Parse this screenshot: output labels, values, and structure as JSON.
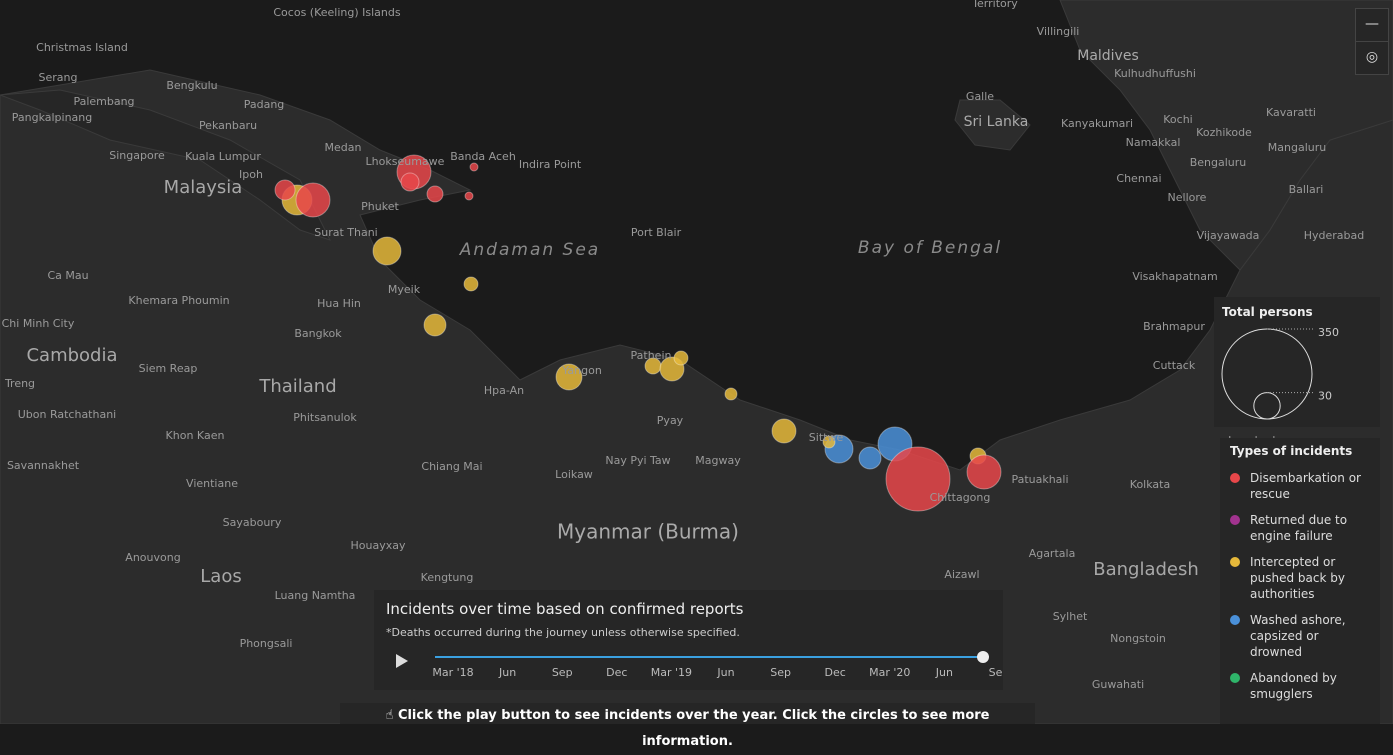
{
  "map": {
    "places": [
      "Cocos (Keeling) Islands",
      "Territory",
      "Villingili",
      "Maldives",
      "Kulhudhuffushi",
      "Christmas Island",
      "Serang",
      "Bengkulu",
      "Palembang",
      "Padang",
      "Pangkalpinang",
      "Pekanbaru",
      "Singapore",
      "Kuala Lumpur",
      "Medan",
      "Lhokseumawe",
      "Banda Aceh",
      "Indira Point",
      "Ipoh",
      "Malaysia",
      "Phuket",
      "Surat Thani",
      "Port Blair",
      "Galle",
      "Sri Lanka",
      "Kanyakumari",
      "Kochi",
      "Kozhikode",
      "Kavaratti",
      "Namakkal",
      "Mangaluru",
      "Bengaluru",
      "Chennai",
      "Ballari",
      "Nellore",
      "Vijayawada",
      "Hyderabad",
      "Visakhapatnam",
      "Brahmapur",
      "Cuttack",
      "Jamshedpur",
      "Kolkata",
      "Patuakhali",
      "Ca Mau",
      "Khemara Phoumin",
      "Hua Hin",
      "Myeik",
      "Chi Minh City",
      "Bangkok",
      "Cambodia",
      "Siem Reap",
      "Thailand",
      "Treng",
      "Ubon Ratchathani",
      "Phitsanulok",
      "Hpa-An",
      "Yangon",
      "Pathein",
      "Pyay",
      "Sittwe",
      "Nay Pyi Taw",
      "Magway",
      "Loikaw",
      "Khon Kaen",
      "Savannakhet",
      "Chiang Mai",
      "Vientiane",
      "Myanmar (Burma)",
      "Chittagong",
      "Anouvong",
      "Sayaboury",
      "Houayxay",
      "Laos",
      "Kengtung",
      "Luang Namtha",
      "Phongsali",
      "Aizawl",
      "Agartala",
      "Bangladesh",
      "Sylhet",
      "Nongstoin",
      "Guwahati"
    ],
    "seas": [
      "Andaman Sea",
      "Bay of Bengal"
    ]
  },
  "size_legend": {
    "title": "Total persons",
    "sizes": [
      350,
      30
    ]
  },
  "types": {
    "title": "Types of incidents",
    "items": [
      {
        "name": "Disembarkation or rescue",
        "color": "#e8474a"
      },
      {
        "name": "Returned due to engine failure",
        "color": "#a2338f"
      },
      {
        "name": "Intercepted or pushed back by authorities",
        "color": "#e5b83a"
      },
      {
        "name": "Washed ashore, capsized or drowned",
        "color": "#4a90d9"
      },
      {
        "name": "Abandoned by smugglers",
        "color": "#2fb56a"
      }
    ]
  },
  "timeline": {
    "title": "Incidents over time based on confirmed reports",
    "note": "*Deaths occurred during the journey unless otherwise specified.",
    "ticks": [
      "Mar '18",
      "Jun",
      "Sep",
      "Dec",
      "Mar '19",
      "Jun",
      "Sep",
      "Dec",
      "Mar '20",
      "Jun",
      "Sep"
    ]
  },
  "hint": "Click the play button to see incidents over the year. Click the circles to see more information."
}
